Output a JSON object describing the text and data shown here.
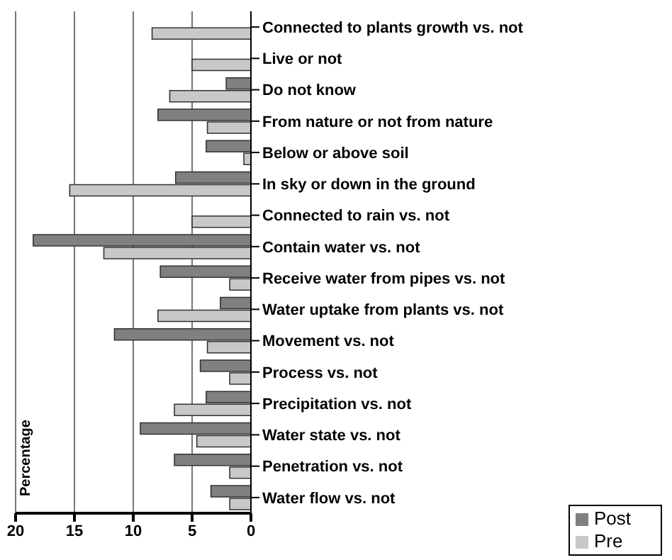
{
  "chart_data": {
    "type": "bar",
    "orientation": "horizontal",
    "ylabel": "Percentage",
    "categories": [
      "Connected to plants growth vs. not",
      "Live or not",
      "Do not know",
      "From nature or not from nature",
      "Below or above soil",
      "In sky or down in the ground",
      "Connected to rain vs. not",
      "Contain water vs. not",
      "Receive water from pipes vs. not",
      "Water uptake from plants vs. not",
      "Movement vs. not",
      "Process vs. not",
      "Precipitation vs. not",
      "Water state vs. not",
      "Penetration vs. not",
      "Water flow vs. not"
    ],
    "series": [
      {
        "name": "Post",
        "color": "#808080",
        "values": [
          0,
          0,
          2.1,
          7.9,
          3.8,
          6.4,
          0,
          18.5,
          7.7,
          2.6,
          11.6,
          4.3,
          3.8,
          9.4,
          6.5,
          3.4
        ]
      },
      {
        "name": "Pre",
        "color": "#c8c8c8",
        "values": [
          8.4,
          5.0,
          6.9,
          3.7,
          0.6,
          15.4,
          5.0,
          12.5,
          1.8,
          7.9,
          3.7,
          1.8,
          6.5,
          4.6,
          1.8,
          1.8
        ]
      }
    ],
    "xlim": [
      20,
      0
    ],
    "xticks": [
      0,
      5,
      10,
      15,
      20
    ],
    "grid": "x",
    "legend": "bottom right"
  }
}
